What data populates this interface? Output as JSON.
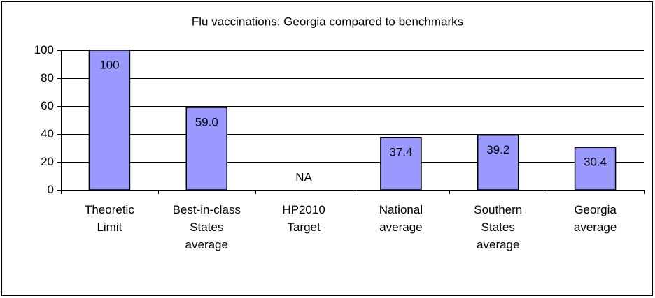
{
  "chart_data": {
    "type": "bar",
    "title": "Flu vaccinations: Georgia compared to benchmarks",
    "categories": [
      "Theoretic\nLimit",
      "Best-in-class\nStates\naverage",
      "HP2010\nTarget",
      "National\naverage",
      "Southern\nStates\naverage",
      "Georgia\naverage"
    ],
    "values": [
      100,
      59.0,
      null,
      37.4,
      39.2,
      30.4
    ],
    "value_labels": [
      "100",
      "59.0",
      "NA",
      "37.4",
      "39.2",
      "30.4"
    ],
    "color": "#9999ff",
    "ylim": [
      0,
      100
    ],
    "yticks": [
      0,
      20,
      40,
      60,
      80,
      100
    ],
    "grid": true
  }
}
